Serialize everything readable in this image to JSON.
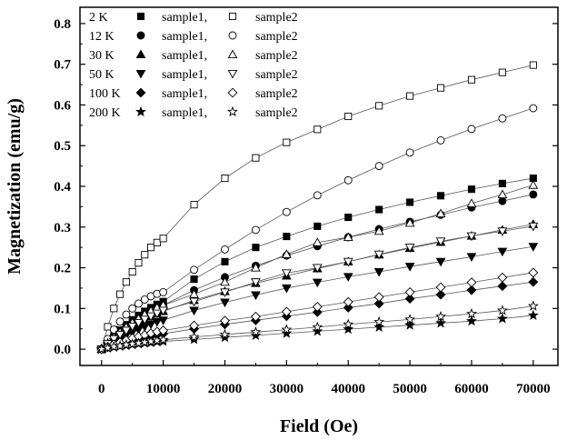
{
  "chart_data": {
    "type": "scatter",
    "xlabel": "Field (Oe)",
    "ylabel": "Magnetization (emu/g)",
    "xlim": [
      -3500,
      74000
    ],
    "ylim": [
      -0.04,
      0.84
    ],
    "xticks": [
      0,
      10000,
      20000,
      30000,
      40000,
      50000,
      60000,
      70000
    ],
    "yticks": [
      0.0,
      0.1,
      0.2,
      0.3,
      0.4,
      0.5,
      0.6,
      0.7,
      0.8
    ],
    "xtick_labels": [
      "0",
      "10000",
      "20000",
      "30000",
      "40000",
      "50000",
      "60000",
      "70000"
    ],
    "ytick_labels": [
      "0.0",
      "0.1",
      "0.2",
      "0.3",
      "0.4",
      "0.5",
      "0.6",
      "0.7",
      "0.8"
    ],
    "grid": false,
    "legend_position": "top-left",
    "fit_lines": true,
    "x": [
      0,
      1000,
      2000,
      3000,
      4000,
      5000,
      6000,
      7000,
      8000,
      9000,
      10000,
      15000,
      20000,
      25000,
      30000,
      35000,
      40000,
      45000,
      50000,
      55000,
      60000,
      65000,
      70000
    ],
    "legend": [
      {
        "temperature": "2 K",
        "label1": "sample1,",
        "label2": "sample2"
      },
      {
        "temperature": "12 K",
        "label1": "sample1,",
        "label2": "sample2"
      },
      {
        "temperature": "30 K",
        "label1": "sample1,",
        "label2": "sample2"
      },
      {
        "temperature": "50 K",
        "label1": "sample1,",
        "label2": "sample2"
      },
      {
        "temperature": "100 K",
        "label1": "sample1,",
        "label2": "sample2"
      },
      {
        "temperature": "200 K",
        "label1": "sample1,",
        "label2": "sample2"
      }
    ],
    "series": [
      {
        "marker": "square",
        "filled": true,
        "values": [
          0.0,
          0.017,
          0.033,
          0.047,
          0.06,
          0.072,
          0.083,
          0.093,
          0.102,
          0.11,
          0.117,
          0.172,
          0.215,
          0.25,
          0.277,
          0.302,
          0.324,
          0.343,
          0.361,
          0.377,
          0.393,
          0.407,
          0.42
        ]
      },
      {
        "marker": "square",
        "filled": false,
        "values": [
          0.0,
          0.055,
          0.1,
          0.135,
          0.165,
          0.19,
          0.212,
          0.232,
          0.25,
          0.262,
          0.272,
          0.355,
          0.42,
          0.47,
          0.508,
          0.54,
          0.572,
          0.598,
          0.622,
          0.642,
          0.662,
          0.68,
          0.698
        ]
      },
      {
        "marker": "circle",
        "filled": true,
        "values": [
          0.0,
          0.015,
          0.029,
          0.042,
          0.054,
          0.065,
          0.075,
          0.085,
          0.094,
          0.102,
          0.108,
          0.145,
          0.177,
          0.205,
          0.23,
          0.253,
          0.275,
          0.295,
          0.313,
          0.33,
          0.348,
          0.364,
          0.38
        ]
      },
      {
        "marker": "circle",
        "filled": false,
        "values": [
          0.0,
          0.025,
          0.048,
          0.068,
          0.085,
          0.1,
          0.112,
          0.122,
          0.13,
          0.136,
          0.14,
          0.195,
          0.245,
          0.293,
          0.337,
          0.378,
          0.415,
          0.45,
          0.483,
          0.513,
          0.541,
          0.567,
          0.592
        ]
      },
      {
        "marker": "triangle-up",
        "filled": true,
        "values": [
          0.0,
          0.012,
          0.024,
          0.035,
          0.045,
          0.055,
          0.064,
          0.072,
          0.08,
          0.087,
          0.093,
          0.12,
          0.142,
          0.162,
          0.18,
          0.198,
          0.215,
          0.232,
          0.248,
          0.263,
          0.278,
          0.293,
          0.307
        ]
      },
      {
        "marker": "triangle-up",
        "filled": false,
        "values": [
          0.0,
          0.015,
          0.029,
          0.042,
          0.054,
          0.065,
          0.075,
          0.085,
          0.094,
          0.102,
          0.108,
          0.135,
          0.165,
          0.2,
          0.233,
          0.262,
          0.275,
          0.29,
          0.31,
          0.333,
          0.358,
          0.38,
          0.403
        ]
      },
      {
        "marker": "triangle-down",
        "filled": true,
        "values": [
          0.0,
          0.009,
          0.018,
          0.026,
          0.034,
          0.041,
          0.048,
          0.055,
          0.061,
          0.067,
          0.071,
          0.095,
          0.115,
          0.133,
          0.15,
          0.164,
          0.178,
          0.19,
          0.203,
          0.215,
          0.227,
          0.24,
          0.252
        ]
      },
      {
        "marker": "triangle-down",
        "filled": false,
        "values": [
          0.0,
          0.013,
          0.025,
          0.036,
          0.046,
          0.056,
          0.065,
          0.073,
          0.081,
          0.088,
          0.095,
          0.117,
          0.14,
          0.165,
          0.187,
          0.2,
          0.215,
          0.233,
          0.25,
          0.265,
          0.278,
          0.29,
          0.302
        ]
      },
      {
        "marker": "diamond",
        "filled": true,
        "values": [
          0.0,
          0.005,
          0.01,
          0.014,
          0.018,
          0.022,
          0.026,
          0.029,
          0.032,
          0.035,
          0.038,
          0.05,
          0.061,
          0.071,
          0.081,
          0.091,
          0.102,
          0.112,
          0.124,
          0.134,
          0.145,
          0.155,
          0.165
        ]
      },
      {
        "marker": "diamond",
        "filled": false,
        "values": [
          0.0,
          0.006,
          0.012,
          0.017,
          0.022,
          0.027,
          0.031,
          0.035,
          0.039,
          0.043,
          0.046,
          0.058,
          0.07,
          0.08,
          0.092,
          0.104,
          0.116,
          0.128,
          0.14,
          0.152,
          0.164,
          0.176,
          0.188
        ]
      },
      {
        "marker": "star",
        "filled": true,
        "values": [
          0.0,
          0.003,
          0.005,
          0.007,
          0.009,
          0.011,
          0.013,
          0.015,
          0.016,
          0.018,
          0.019,
          0.024,
          0.029,
          0.034,
          0.039,
          0.044,
          0.049,
          0.054,
          0.059,
          0.064,
          0.069,
          0.075,
          0.083
        ]
      },
      {
        "marker": "star",
        "filled": false,
        "values": [
          0.0,
          0.003,
          0.006,
          0.008,
          0.011,
          0.013,
          0.015,
          0.017,
          0.019,
          0.021,
          0.023,
          0.03,
          0.036,
          0.042,
          0.048,
          0.054,
          0.061,
          0.067,
          0.073,
          0.08,
          0.087,
          0.095,
          0.106
        ]
      }
    ]
  }
}
